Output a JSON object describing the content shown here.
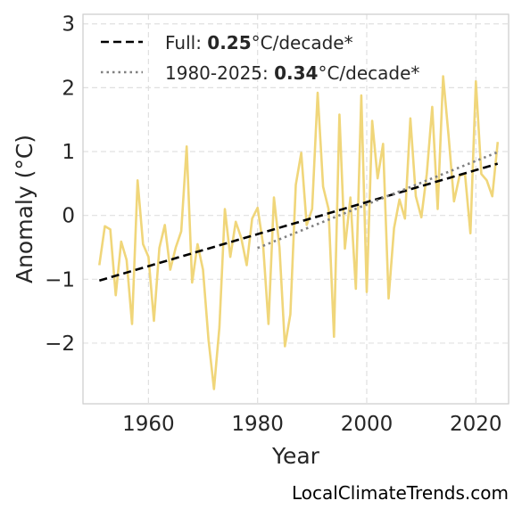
{
  "chart_data": {
    "type": "line",
    "xlabel": "Year",
    "ylabel": "Anomaly (°C)",
    "xlim": [
      1948,
      2026
    ],
    "ylim": [
      -2.95,
      3.15
    ],
    "xticks": [
      1960,
      1980,
      2000,
      2020
    ],
    "yticks": [
      -2,
      -1,
      0,
      1,
      2,
      3
    ],
    "ytick_labels": [
      "−2",
      "−1",
      "0",
      "1",
      "2",
      "3"
    ],
    "grid": true,
    "legend_position": "top-left",
    "colors": {
      "series": "#f0d67a",
      "full_trend": "#000000",
      "recent_trend": "#808080",
      "grid": "#e0e0e0",
      "frame": "#cccccc"
    },
    "series": [
      {
        "x": [
          1951,
          1952,
          1953,
          1954,
          1955,
          1956,
          1957,
          1958,
          1959,
          1960,
          1961,
          1962,
          1963,
          1964,
          1965,
          1966,
          1967,
          1968,
          1969,
          1970,
          1971,
          1972,
          1973,
          1974,
          1975,
          1976,
          1977,
          1978,
          1979,
          1980,
          1981,
          1982,
          1983,
          1984,
          1985,
          1986,
          1987,
          1988,
          1989,
          1990,
          1991,
          1992,
          1993,
          1994,
          1995,
          1996,
          1997,
          1998,
          1999,
          2000,
          2001,
          2002,
          2003,
          2004,
          2005,
          2006,
          2007,
          2008,
          2009,
          2010,
          2011,
          2012,
          2013,
          2014,
          2015,
          2016,
          2017,
          2018,
          2019,
          2020,
          2021,
          2022,
          2023,
          2024
        ],
        "values": [
          -0.78,
          -0.17,
          -0.22,
          -1.25,
          -0.41,
          -0.7,
          -1.7,
          0.55,
          -0.45,
          -0.65,
          -1.65,
          -0.51,
          -0.15,
          -0.85,
          -0.5,
          -0.25,
          1.08,
          -1.05,
          -0.45,
          -0.85,
          -1.95,
          -2.72,
          -1.75,
          0.1,
          -0.65,
          -0.1,
          -0.35,
          -0.78,
          -0.05,
          0.12,
          -0.45,
          -1.7,
          0.28,
          -0.5,
          -2.05,
          -1.55,
          0.48,
          0.98,
          -0.15,
          0.1,
          1.92,
          0.45,
          0.1,
          -1.9,
          1.58,
          -0.52,
          0.28,
          -1.15,
          1.88,
          -1.2,
          1.48,
          0.58,
          1.12,
          -1.3,
          -0.2,
          0.25,
          -0.05,
          1.52,
          0.3,
          -0.03,
          0.65,
          1.7,
          0.1,
          2.18,
          1.25,
          0.22,
          0.62,
          0.65,
          -0.28,
          2.1,
          0.65,
          0.55,
          0.3,
          1.15
        ]
      }
    ],
    "trends": [
      {
        "label_prefix": "Full: ",
        "label_value": "0.25",
        "label_suffix": "°C/decade*",
        "x": [
          1951,
          2024
        ],
        "y": [
          -1.02,
          0.81
        ],
        "style": "dashed"
      },
      {
        "label_prefix": "1980-2025: ",
        "label_value": "0.34",
        "label_suffix": "°C/decade*",
        "x": [
          1980,
          2024
        ],
        "y": [
          -0.51,
          0.99
        ],
        "style": "dotted"
      }
    ]
  },
  "source": "LocalClimateTrends.com"
}
